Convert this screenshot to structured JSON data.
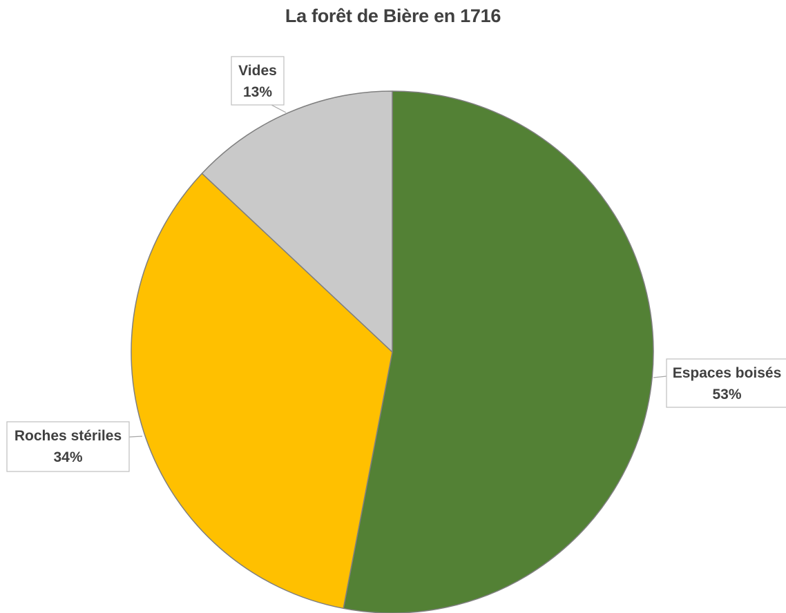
{
  "chart_data": {
    "type": "pie",
    "title": "La forêt de Bière en 1716",
    "categories": [
      "Espaces boisés",
      "Roches stériles",
      "Vides"
    ],
    "values": [
      53,
      34,
      13
    ],
    "value_labels": [
      "53%",
      "34%",
      "13%"
    ],
    "colors": [
      "#538135",
      "#FFC000",
      "#C9C9C9"
    ],
    "legend": "none",
    "data_labels": "callouts with category name and percentage"
  }
}
